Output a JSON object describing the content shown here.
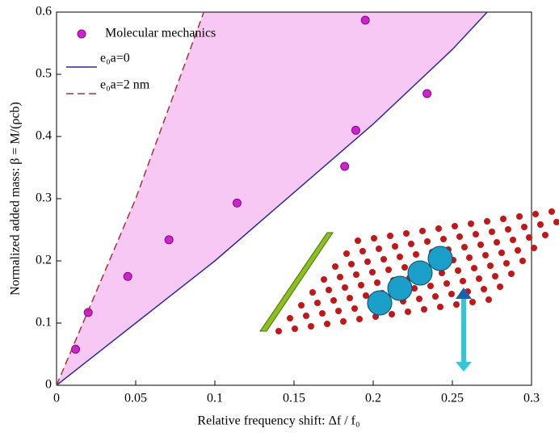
{
  "chart_data": {
    "type": "scatter",
    "xlabel": "Relative frequency shift:  Δf / f₀",
    "ylabel": "Normalized added mass:  β = M/(ρcb)",
    "xlim": [
      0,
      0.3
    ],
    "ylim": [
      0,
      0.6
    ],
    "xticks": [
      0,
      0.05,
      0.1,
      0.15,
      0.2,
      0.25,
      0.3
    ],
    "yticks": [
      0,
      0.1,
      0.2,
      0.3,
      0.4,
      0.5,
      0.6
    ],
    "legend": "upper left",
    "fill_color": "#f8c8f4",
    "series": [
      {
        "name": "Molecular mechanics",
        "type": "scatter",
        "color": "#d21fd2",
        "x": [
          0.012,
          0.02,
          0.045,
          0.071,
          0.114,
          0.182,
          0.189,
          0.195,
          0.234
        ],
        "values": [
          0.058,
          0.117,
          0.175,
          0.234,
          0.293,
          0.352,
          0.41,
          0.587,
          0.469
        ]
      },
      {
        "name": "e₀a=0",
        "type": "line",
        "color": "#2a2aa8",
        "dash": false,
        "x": [
          0,
          0.05,
          0.1,
          0.15,
          0.2,
          0.25,
          0.272
        ],
        "values": [
          0,
          0.1,
          0.2,
          0.31,
          0.42,
          0.54,
          0.6
        ]
      },
      {
        "name": "e₀a=2 nm",
        "type": "line",
        "color": "#a83232",
        "dash": true,
        "x": [
          0,
          0.02,
          0.05,
          0.093
        ],
        "values": [
          0,
          0.12,
          0.3,
          0.6
        ]
      }
    ]
  }
}
